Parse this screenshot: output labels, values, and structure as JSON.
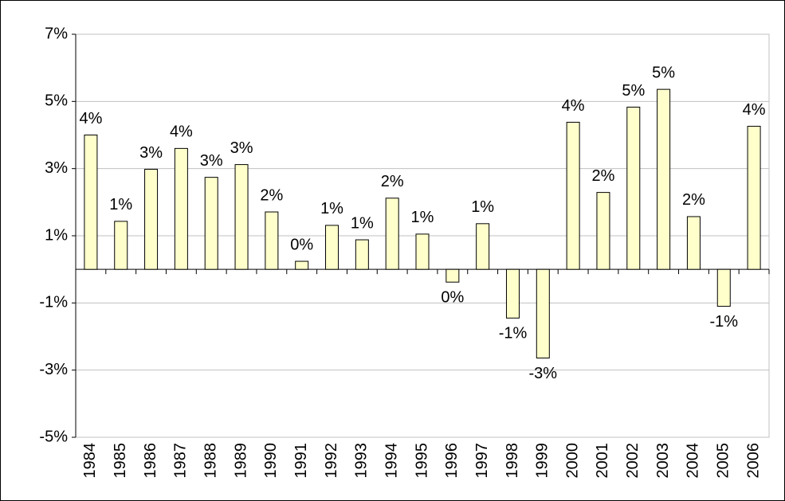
{
  "chart_data": {
    "type": "bar",
    "categories": [
      "1984",
      "1985",
      "1986",
      "1987",
      "1988",
      "1989",
      "1990",
      "1991",
      "1992",
      "1993",
      "1994",
      "1995",
      "1996",
      "1997",
      "1998",
      "1999",
      "2000",
      "2001",
      "2002",
      "2003",
      "2004",
      "2005",
      "2006"
    ],
    "values": [
      4.0,
      1.43,
      2.98,
      3.6,
      2.74,
      3.12,
      1.71,
      0.24,
      1.31,
      0.88,
      2.12,
      1.05,
      -0.38,
      1.36,
      -1.45,
      -2.64,
      4.38,
      2.29,
      4.83,
      5.36,
      1.57,
      -1.1,
      4.26
    ],
    "value_labels": [
      "4%",
      "1%",
      "3%",
      "4%",
      "3%",
      "3%",
      "2%",
      "0%",
      "1%",
      "1%",
      "2%",
      "1%",
      "0%",
      "1%",
      "-1%",
      "-3%",
      "4%",
      "2%",
      "5%",
      "5%",
      "2%",
      "-1%",
      "4%"
    ],
    "color": "#ffffcc",
    "ylim": [
      -5,
      7
    ],
    "yticks": [
      {
        "value": -5,
        "label": "-5%"
      },
      {
        "value": -3,
        "label": "-3%"
      },
      {
        "value": -1,
        "label": "-1%"
      },
      {
        "value": 1,
        "label": "1%"
      },
      {
        "value": 3,
        "label": "3%"
      },
      {
        "value": 5,
        "label": "5%"
      },
      {
        "value": 7,
        "label": "7%"
      }
    ],
    "grid": true
  }
}
